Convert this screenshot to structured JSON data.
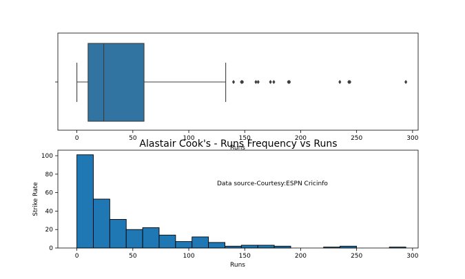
{
  "chart_data": [
    {
      "type": "box",
      "xlabel": "Runs",
      "xlim": [
        -17,
        305
      ],
      "xticks": [
        0,
        50,
        100,
        150,
        200,
        250,
        300
      ],
      "box": {
        "whisker_low": 0,
        "q1": 10,
        "median": 24,
        "q3": 60,
        "whisker_high": 133
      },
      "outliers": [
        140,
        147,
        148,
        160,
        162,
        173,
        176,
        189,
        190,
        235,
        243,
        244,
        294
      ],
      "color": "#3274a1"
    },
    {
      "type": "histogram",
      "title": "Alastair Cook's - Runs Frequency vs Runs",
      "xlabel": "Runs",
      "ylabel": "Strike Rate",
      "annotation": "Data source-Courtesy:ESPN Cricinfo",
      "xlim": [
        -17,
        305
      ],
      "ylim": [
        0,
        106
      ],
      "xticks": [
        0,
        50,
        100,
        150,
        200,
        250,
        300
      ],
      "yticks": [
        0,
        20,
        40,
        60,
        80,
        100
      ],
      "bin_width": 14.7,
      "bin_start": 0,
      "counts": [
        101,
        53,
        31,
        20,
        22,
        14,
        7,
        12,
        6,
        2,
        3,
        3,
        2,
        0,
        0,
        1,
        2,
        0,
        0,
        1
      ],
      "color": "#1f77b4"
    }
  ]
}
